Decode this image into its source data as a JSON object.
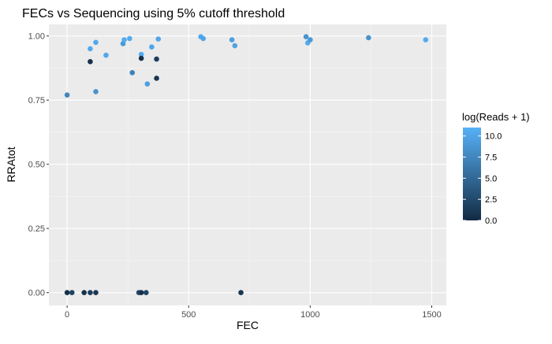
{
  "chart_data": {
    "type": "scatter",
    "title": "FECs vs Sequencing using 5% cutoff threshold",
    "xlabel": "FEC",
    "ylabel": "RRAtot",
    "xlim": [
      -75,
      1560
    ],
    "ylim": [
      -0.05,
      1.045
    ],
    "x_ticks": [
      0,
      500,
      1000,
      1500
    ],
    "x_tick_labels": [
      "0",
      "500",
      "1000",
      "1500"
    ],
    "y_ticks": [
      0,
      0.25,
      0.5,
      0.75,
      1.0
    ],
    "y_tick_labels": [
      "0.00",
      "0.25",
      "0.50",
      "0.75",
      "1.00"
    ],
    "grid": true,
    "background": "#ebebeb",
    "color_scale": {
      "name": "log(Reads + 1)",
      "min": 0,
      "max": 11,
      "low_color": "#132b43",
      "high_color": "#56b1f7",
      "ticks": [
        0,
        2.5,
        5,
        7.5,
        10
      ],
      "tick_labels": [
        "0.0",
        "2.5",
        "5.0",
        "7.5",
        "10.0"
      ],
      "legend_position": "right"
    },
    "points": [
      {
        "x": 0,
        "y": 0.77,
        "c": 7.5
      },
      {
        "x": 95,
        "y": 0.95,
        "c": 10.3
      },
      {
        "x": 95,
        "y": 0.9,
        "c": 0.5
      },
      {
        "x": 118,
        "y": 0.975,
        "c": 10.3
      },
      {
        "x": 118,
        "y": 0.783,
        "c": 8.5
      },
      {
        "x": 160,
        "y": 0.925,
        "c": 10.3
      },
      {
        "x": 230,
        "y": 0.97,
        "c": 9.0
      },
      {
        "x": 235,
        "y": 0.985,
        "c": 10.5
      },
      {
        "x": 257,
        "y": 0.99,
        "c": 10.5
      },
      {
        "x": 268,
        "y": 0.857,
        "c": 7.0
      },
      {
        "x": 305,
        "y": 0.928,
        "c": 10.5
      },
      {
        "x": 305,
        "y": 0.913,
        "c": 0.5
      },
      {
        "x": 330,
        "y": 0.813,
        "c": 9.5
      },
      {
        "x": 348,
        "y": 0.957,
        "c": 10.0
      },
      {
        "x": 368,
        "y": 0.835,
        "c": 1.0
      },
      {
        "x": 368,
        "y": 0.91,
        "c": 1.5
      },
      {
        "x": 375,
        "y": 0.988,
        "c": 10.2
      },
      {
        "x": 550,
        "y": 0.997,
        "c": 10.3
      },
      {
        "x": 560,
        "y": 0.99,
        "c": 10.0
      },
      {
        "x": 678,
        "y": 0.985,
        "c": 9.5
      },
      {
        "x": 690,
        "y": 0.962,
        "c": 9.8
      },
      {
        "x": 983,
        "y": 0.997,
        "c": 8.7
      },
      {
        "x": 990,
        "y": 0.973,
        "c": 10.3
      },
      {
        "x": 1000,
        "y": 0.985,
        "c": 9.0
      },
      {
        "x": 1240,
        "y": 0.993,
        "c": 8.5
      },
      {
        "x": 1475,
        "y": 0.985,
        "c": 10.5
      },
      {
        "x": 0,
        "y": 0,
        "c": 0.5
      },
      {
        "x": 20,
        "y": 0,
        "c": 2.0
      },
      {
        "x": 70,
        "y": 0,
        "c": 0.5
      },
      {
        "x": 95,
        "y": 0,
        "c": 1.5
      },
      {
        "x": 118,
        "y": 0,
        "c": 1.0
      },
      {
        "x": 295,
        "y": 0,
        "c": 2.5
      },
      {
        "x": 305,
        "y": 0,
        "c": 0.5
      },
      {
        "x": 325,
        "y": 0,
        "c": 2.0
      },
      {
        "x": 715,
        "y": 0,
        "c": 1.0
      }
    ]
  }
}
